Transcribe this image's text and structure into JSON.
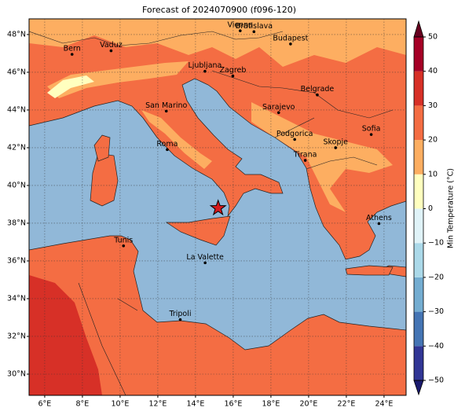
{
  "title": "Forecast of 2024070900 (f096-120)",
  "map": {
    "lonlim": [
      5.17,
      25.17
    ],
    "latlim": [
      28.875,
      48.83
    ],
    "lonticks": [
      {
        "value": 6,
        "label": "6°E"
      },
      {
        "value": 8,
        "label": "8°E"
      },
      {
        "value": 10,
        "label": "10°E"
      },
      {
        "value": 12,
        "label": "12°E"
      },
      {
        "value": 14,
        "label": "14°E"
      },
      {
        "value": 16,
        "label": "16°E"
      },
      {
        "value": 18,
        "label": "18°E"
      },
      {
        "value": 20,
        "label": "20°E"
      },
      {
        "value": 22,
        "label": "22°E"
      },
      {
        "value": 24,
        "label": "24°E"
      }
    ],
    "latticks": [
      {
        "value": 30,
        "label": "30°N"
      },
      {
        "value": 32,
        "label": "32°N"
      },
      {
        "value": 34,
        "label": "34°N"
      },
      {
        "value": 36,
        "label": "36°N"
      },
      {
        "value": 38,
        "label": "38°N"
      },
      {
        "value": 40,
        "label": "40°N"
      },
      {
        "value": 42,
        "label": "42°N"
      },
      {
        "value": 44,
        "label": "44°N"
      },
      {
        "value": 46,
        "label": "46°N"
      },
      {
        "value": 48,
        "label": "48°N"
      }
    ],
    "grid": true,
    "cities": [
      {
        "name": "Bern",
        "lon": 7.45,
        "lat": 46.95
      },
      {
        "name": "Vaduz",
        "lon": 9.52,
        "lat": 47.14
      },
      {
        "name": "Vienna",
        "lon": 16.37,
        "lat": 48.2
      },
      {
        "name": "Bratislava",
        "lon": 17.1,
        "lat": 48.15
      },
      {
        "name": "Budapest",
        "lon": 19.04,
        "lat": 47.5
      },
      {
        "name": "Ljubljana",
        "lon": 14.5,
        "lat": 46.05
      },
      {
        "name": "Zagreb",
        "lon": 15.98,
        "lat": 45.8
      },
      {
        "name": "Belgrade",
        "lon": 20.46,
        "lat": 44.8
      },
      {
        "name": "San Marino",
        "lon": 12.45,
        "lat": 43.94
      },
      {
        "name": "Sarajevo",
        "lon": 18.41,
        "lat": 43.86
      },
      {
        "name": "Sofia",
        "lon": 23.32,
        "lat": 42.7
      },
      {
        "name": "Podgorica",
        "lon": 19.26,
        "lat": 42.44
      },
      {
        "name": "Skopje",
        "lon": 21.43,
        "lat": 42.0
      },
      {
        "name": "Roma",
        "lon": 12.5,
        "lat": 41.9
      },
      {
        "name": "Tirana",
        "lon": 19.82,
        "lat": 41.33
      },
      {
        "name": "Athens",
        "lon": 23.73,
        "lat": 37.98
      },
      {
        "name": "Tunis",
        "lon": 10.18,
        "lat": 36.8
      },
      {
        "name": "La Valette",
        "lon": 14.51,
        "lat": 35.9
      },
      {
        "name": "Tripoli",
        "lon": 13.19,
        "lat": 32.89
      }
    ],
    "marker": {
      "lon": 15.2,
      "lat": 38.8,
      "color": "#d7191c"
    }
  },
  "colorbar": {
    "label": "Min Temperature (°C)",
    "lim": [
      -50,
      50
    ],
    "ticks": [
      {
        "value": -50,
        "label": "−50"
      },
      {
        "value": -40,
        "label": "−40"
      },
      {
        "value": -30,
        "label": "−30"
      },
      {
        "value": -20,
        "label": "−20"
      },
      {
        "value": -10,
        "label": "−10"
      },
      0,
      10,
      20,
      30,
      40,
      50
    ],
    "colors": [
      "#313695",
      "#4575b4",
      "#74add1",
      "#abd9e9",
      "#e0f3f8",
      "#ffffbf",
      "#fdae61",
      "#f46d43",
      "#d73027",
      "#a50026"
    ],
    "extend_colors": [
      "#1a1a6e",
      "#67001f"
    ]
  }
}
